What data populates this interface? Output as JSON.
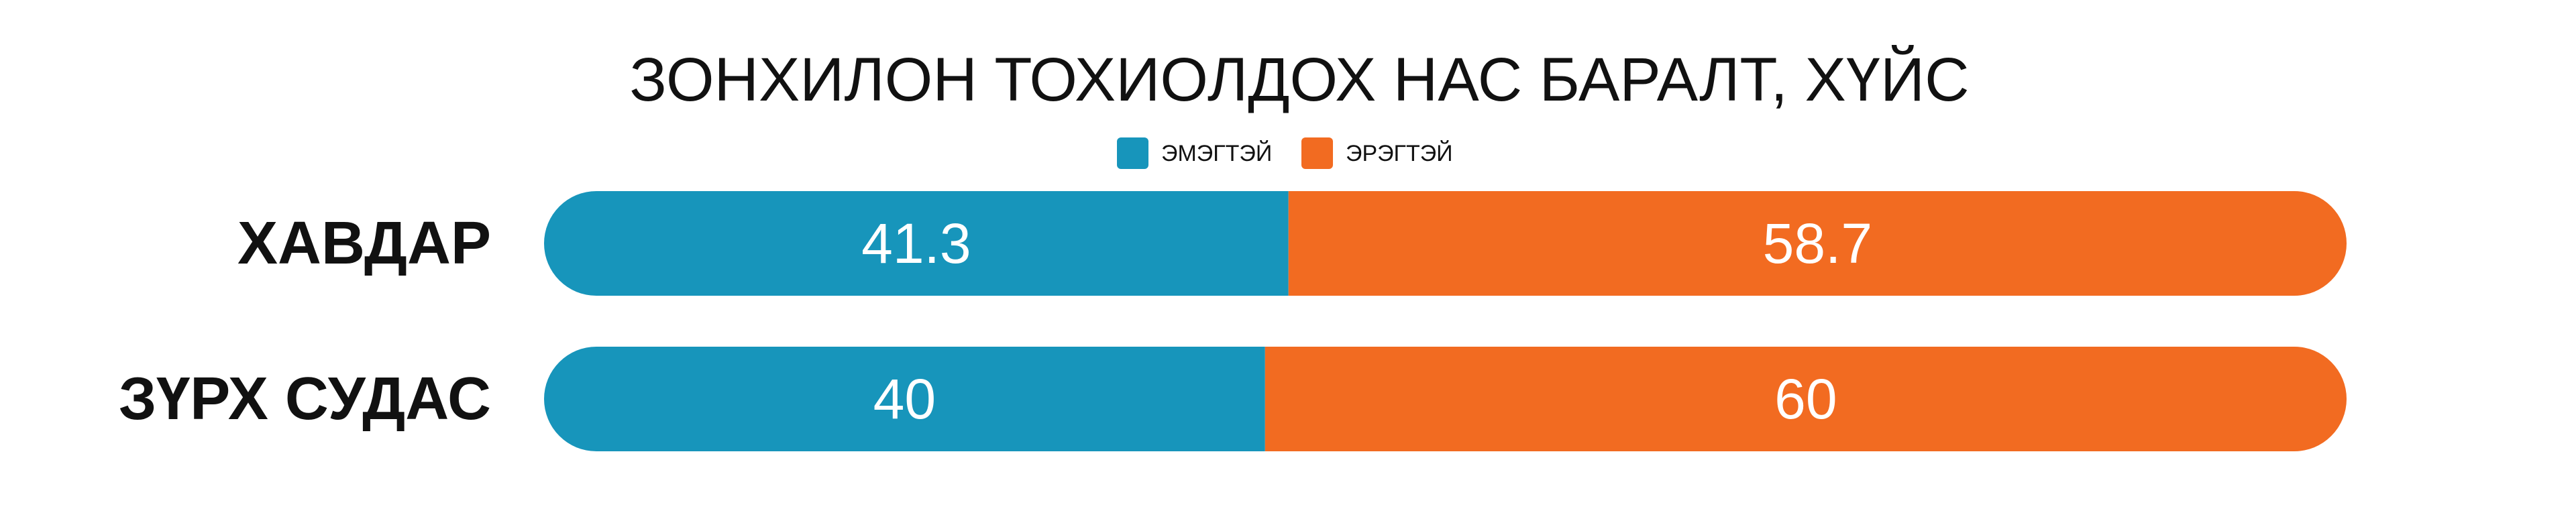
{
  "chart_data": {
    "type": "bar",
    "orientation": "horizontal",
    "stacked": true,
    "title": "ЗОНХИЛОН ТОХИОЛДОХ НАС БАРАЛТ, ХҮЙС",
    "categories": [
      "ХАВДАР",
      "ЗҮРХ СУДАС"
    ],
    "series": [
      {
        "name": "ЭМЭГТЭЙ",
        "color": "#1795bb",
        "values": [
          41.3,
          40
        ]
      },
      {
        "name": "ЭРЭГТЭЙ",
        "color": "#f26b21",
        "values": [
          58.7,
          60
        ]
      }
    ],
    "xlim": [
      0,
      100
    ],
    "legend": "top"
  }
}
